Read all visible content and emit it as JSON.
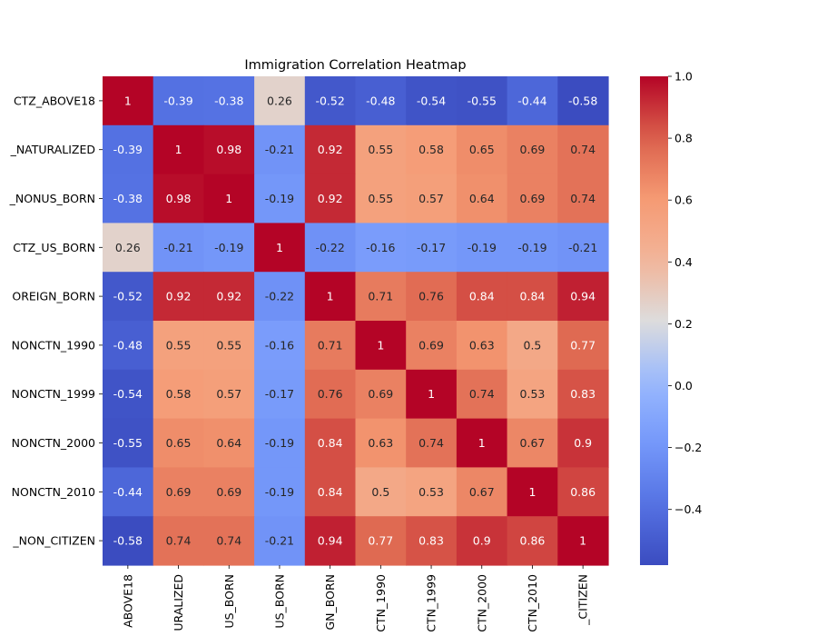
{
  "chart_data": {
    "type": "heatmap",
    "title": "Immigration Correlation Heatmap",
    "colormap": "coolwarm",
    "vmin": -0.58,
    "vmax": 1.0,
    "row_labels": [
      "CTZ_ABOVE18",
      "_NATURALIZED",
      "_NONUS_BORN",
      "CTZ_US_BORN",
      "OREIGN_BORN",
      "NONCTN_1990",
      "NONCTN_1999",
      "NONCTN_2000",
      "NONCTN_2010",
      "_NON_CITIZEN"
    ],
    "col_labels": [
      "ABOVE18",
      "URALIZED",
      "US_BORN",
      "US_BORN",
      "GN_BORN",
      "CTN_1990",
      "CTN_1999",
      "CTN_2000",
      "CTN_2010",
      "_CITIZEN"
    ],
    "matrix": [
      [
        1,
        -0.39,
        -0.38,
        0.26,
        -0.52,
        -0.48,
        -0.54,
        -0.55,
        -0.44,
        -0.58
      ],
      [
        -0.39,
        1,
        0.98,
        -0.21,
        0.92,
        0.55,
        0.58,
        0.65,
        0.69,
        0.74
      ],
      [
        -0.38,
        0.98,
        1,
        -0.19,
        0.92,
        0.55,
        0.57,
        0.64,
        0.69,
        0.74
      ],
      [
        0.26,
        -0.21,
        -0.19,
        1,
        -0.22,
        -0.16,
        -0.17,
        -0.19,
        -0.19,
        -0.21
      ],
      [
        -0.52,
        0.92,
        0.92,
        -0.22,
        1,
        0.71,
        0.76,
        0.84,
        0.84,
        0.94
      ],
      [
        -0.48,
        0.55,
        0.55,
        -0.16,
        0.71,
        1,
        0.69,
        0.63,
        0.5,
        0.77
      ],
      [
        -0.54,
        0.58,
        0.57,
        -0.17,
        0.76,
        0.69,
        1,
        0.74,
        0.53,
        0.83
      ],
      [
        -0.55,
        0.65,
        0.64,
        -0.19,
        0.84,
        0.63,
        0.74,
        1,
        0.67,
        0.9
      ],
      [
        -0.44,
        0.69,
        0.69,
        -0.19,
        0.84,
        0.5,
        0.53,
        0.67,
        1,
        0.86
      ],
      [
        -0.58,
        0.74,
        0.74,
        -0.21,
        0.94,
        0.77,
        0.83,
        0.9,
        0.86,
        1
      ]
    ],
    "colorbar": {
      "ticks": [
        1.0,
        0.8,
        0.6,
        0.4,
        0.2,
        0.0,
        -0.2,
        -0.4
      ],
      "tick_labels": [
        "1.0",
        "0.8",
        "0.6",
        "0.4",
        "0.2",
        "0.0",
        "−0.2",
        "−0.4"
      ]
    }
  }
}
